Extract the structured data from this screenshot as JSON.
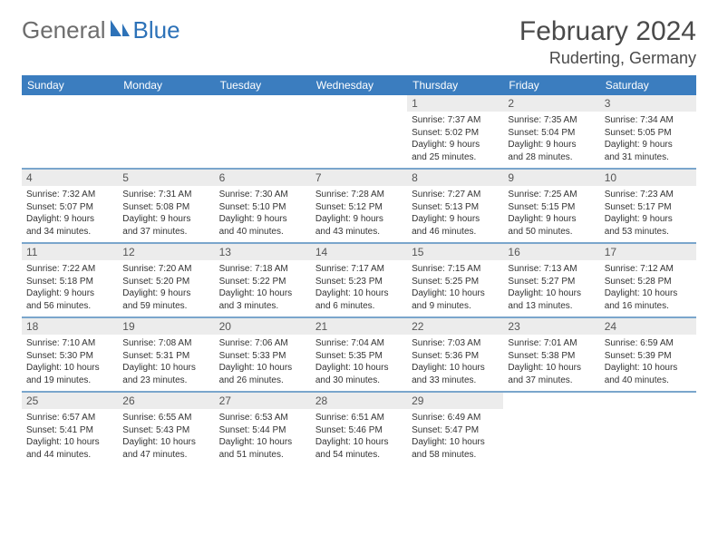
{
  "brand": {
    "part1": "General",
    "part2": "Blue"
  },
  "title": "February 2024",
  "location": "Ruderting, Germany",
  "header_bg": "#3b7dbf",
  "week_border": "#7aa6cc",
  "daynum_bg": "#ececec",
  "dow": [
    "Sunday",
    "Monday",
    "Tuesday",
    "Wednesday",
    "Thursday",
    "Friday",
    "Saturday"
  ],
  "weeks": [
    [
      {
        "n": "",
        "sr": "",
        "ss": "",
        "d1": "",
        "d2": "",
        "empty": true
      },
      {
        "n": "",
        "sr": "",
        "ss": "",
        "d1": "",
        "d2": "",
        "empty": true
      },
      {
        "n": "",
        "sr": "",
        "ss": "",
        "d1": "",
        "d2": "",
        "empty": true
      },
      {
        "n": "",
        "sr": "",
        "ss": "",
        "d1": "",
        "d2": "",
        "empty": true
      },
      {
        "n": "1",
        "sr": "Sunrise: 7:37 AM",
        "ss": "Sunset: 5:02 PM",
        "d1": "Daylight: 9 hours",
        "d2": "and 25 minutes."
      },
      {
        "n": "2",
        "sr": "Sunrise: 7:35 AM",
        "ss": "Sunset: 5:04 PM",
        "d1": "Daylight: 9 hours",
        "d2": "and 28 minutes."
      },
      {
        "n": "3",
        "sr": "Sunrise: 7:34 AM",
        "ss": "Sunset: 5:05 PM",
        "d1": "Daylight: 9 hours",
        "d2": "and 31 minutes."
      }
    ],
    [
      {
        "n": "4",
        "sr": "Sunrise: 7:32 AM",
        "ss": "Sunset: 5:07 PM",
        "d1": "Daylight: 9 hours",
        "d2": "and 34 minutes."
      },
      {
        "n": "5",
        "sr": "Sunrise: 7:31 AM",
        "ss": "Sunset: 5:08 PM",
        "d1": "Daylight: 9 hours",
        "d2": "and 37 minutes."
      },
      {
        "n": "6",
        "sr": "Sunrise: 7:30 AM",
        "ss": "Sunset: 5:10 PM",
        "d1": "Daylight: 9 hours",
        "d2": "and 40 minutes."
      },
      {
        "n": "7",
        "sr": "Sunrise: 7:28 AM",
        "ss": "Sunset: 5:12 PM",
        "d1": "Daylight: 9 hours",
        "d2": "and 43 minutes."
      },
      {
        "n": "8",
        "sr": "Sunrise: 7:27 AM",
        "ss": "Sunset: 5:13 PM",
        "d1": "Daylight: 9 hours",
        "d2": "and 46 minutes."
      },
      {
        "n": "9",
        "sr": "Sunrise: 7:25 AM",
        "ss": "Sunset: 5:15 PM",
        "d1": "Daylight: 9 hours",
        "d2": "and 50 minutes."
      },
      {
        "n": "10",
        "sr": "Sunrise: 7:23 AM",
        "ss": "Sunset: 5:17 PM",
        "d1": "Daylight: 9 hours",
        "d2": "and 53 minutes."
      }
    ],
    [
      {
        "n": "11",
        "sr": "Sunrise: 7:22 AM",
        "ss": "Sunset: 5:18 PM",
        "d1": "Daylight: 9 hours",
        "d2": "and 56 minutes."
      },
      {
        "n": "12",
        "sr": "Sunrise: 7:20 AM",
        "ss": "Sunset: 5:20 PM",
        "d1": "Daylight: 9 hours",
        "d2": "and 59 minutes."
      },
      {
        "n": "13",
        "sr": "Sunrise: 7:18 AM",
        "ss": "Sunset: 5:22 PM",
        "d1": "Daylight: 10 hours",
        "d2": "and 3 minutes."
      },
      {
        "n": "14",
        "sr": "Sunrise: 7:17 AM",
        "ss": "Sunset: 5:23 PM",
        "d1": "Daylight: 10 hours",
        "d2": "and 6 minutes."
      },
      {
        "n": "15",
        "sr": "Sunrise: 7:15 AM",
        "ss": "Sunset: 5:25 PM",
        "d1": "Daylight: 10 hours",
        "d2": "and 9 minutes."
      },
      {
        "n": "16",
        "sr": "Sunrise: 7:13 AM",
        "ss": "Sunset: 5:27 PM",
        "d1": "Daylight: 10 hours",
        "d2": "and 13 minutes."
      },
      {
        "n": "17",
        "sr": "Sunrise: 7:12 AM",
        "ss": "Sunset: 5:28 PM",
        "d1": "Daylight: 10 hours",
        "d2": "and 16 minutes."
      }
    ],
    [
      {
        "n": "18",
        "sr": "Sunrise: 7:10 AM",
        "ss": "Sunset: 5:30 PM",
        "d1": "Daylight: 10 hours",
        "d2": "and 19 minutes."
      },
      {
        "n": "19",
        "sr": "Sunrise: 7:08 AM",
        "ss": "Sunset: 5:31 PM",
        "d1": "Daylight: 10 hours",
        "d2": "and 23 minutes."
      },
      {
        "n": "20",
        "sr": "Sunrise: 7:06 AM",
        "ss": "Sunset: 5:33 PM",
        "d1": "Daylight: 10 hours",
        "d2": "and 26 minutes."
      },
      {
        "n": "21",
        "sr": "Sunrise: 7:04 AM",
        "ss": "Sunset: 5:35 PM",
        "d1": "Daylight: 10 hours",
        "d2": "and 30 minutes."
      },
      {
        "n": "22",
        "sr": "Sunrise: 7:03 AM",
        "ss": "Sunset: 5:36 PM",
        "d1": "Daylight: 10 hours",
        "d2": "and 33 minutes."
      },
      {
        "n": "23",
        "sr": "Sunrise: 7:01 AM",
        "ss": "Sunset: 5:38 PM",
        "d1": "Daylight: 10 hours",
        "d2": "and 37 minutes."
      },
      {
        "n": "24",
        "sr": "Sunrise: 6:59 AM",
        "ss": "Sunset: 5:39 PM",
        "d1": "Daylight: 10 hours",
        "d2": "and 40 minutes."
      }
    ],
    [
      {
        "n": "25",
        "sr": "Sunrise: 6:57 AM",
        "ss": "Sunset: 5:41 PM",
        "d1": "Daylight: 10 hours",
        "d2": "and 44 minutes."
      },
      {
        "n": "26",
        "sr": "Sunrise: 6:55 AM",
        "ss": "Sunset: 5:43 PM",
        "d1": "Daylight: 10 hours",
        "d2": "and 47 minutes."
      },
      {
        "n": "27",
        "sr": "Sunrise: 6:53 AM",
        "ss": "Sunset: 5:44 PM",
        "d1": "Daylight: 10 hours",
        "d2": "and 51 minutes."
      },
      {
        "n": "28",
        "sr": "Sunrise: 6:51 AM",
        "ss": "Sunset: 5:46 PM",
        "d1": "Daylight: 10 hours",
        "d2": "and 54 minutes."
      },
      {
        "n": "29",
        "sr": "Sunrise: 6:49 AM",
        "ss": "Sunset: 5:47 PM",
        "d1": "Daylight: 10 hours",
        "d2": "and 58 minutes."
      },
      {
        "n": "",
        "sr": "",
        "ss": "",
        "d1": "",
        "d2": "",
        "empty": true
      },
      {
        "n": "",
        "sr": "",
        "ss": "",
        "d1": "",
        "d2": "",
        "empty": true
      }
    ]
  ]
}
